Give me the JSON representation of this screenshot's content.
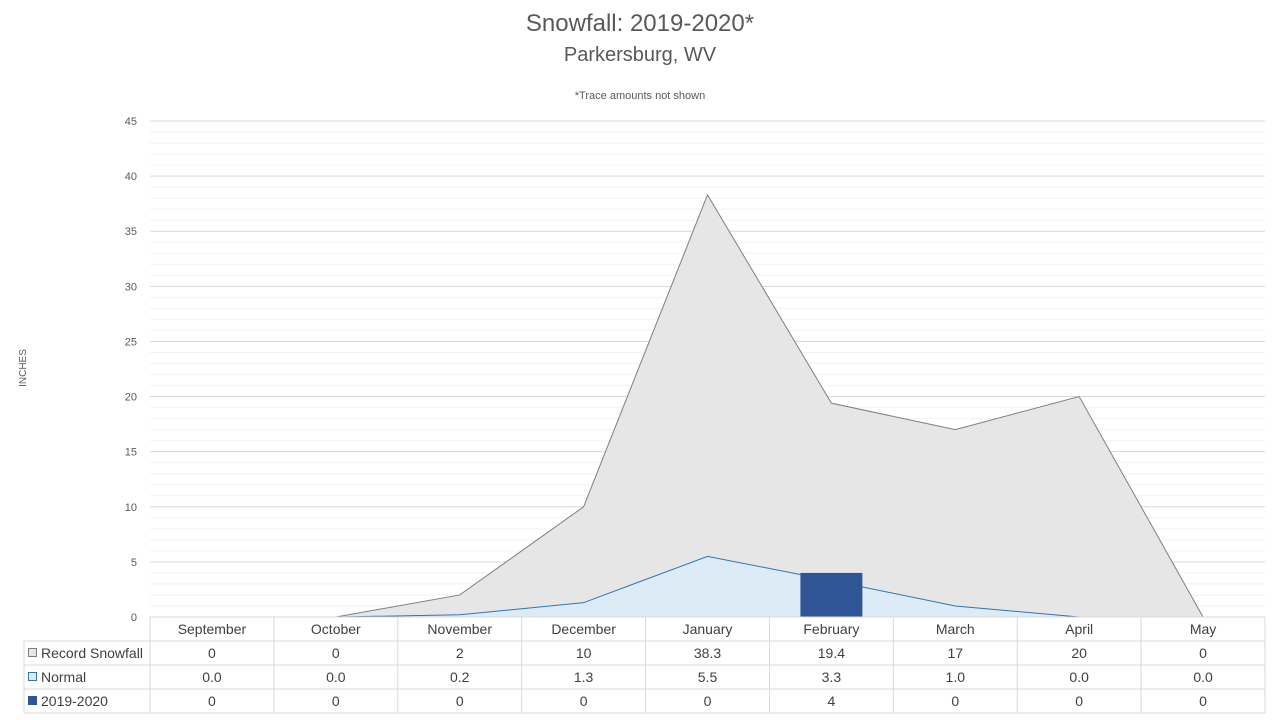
{
  "chart": {
    "title": "Snowfall: 2019-2020*",
    "subtitle": "Parkersburg, WV",
    "note": "*Trace amounts not shown",
    "ylabel": "INCHES"
  },
  "chart_data": {
    "type": "area",
    "title": "Snowfall: 2019-2020*",
    "subtitle": "Parkersburg, WV",
    "ylabel": "INCHES",
    "ylim": [
      0,
      45
    ],
    "yticks": [
      0,
      5,
      10,
      15,
      20,
      25,
      30,
      35,
      40,
      45
    ],
    "grid": true,
    "legend": "data-table",
    "categories": [
      "September",
      "October",
      "November",
      "December",
      "January",
      "February",
      "March",
      "April",
      "May"
    ],
    "series": [
      {
        "name": "Record Snowfall",
        "type": "area",
        "color": "#e7e6e6",
        "line_color": "#7f7f7f",
        "values": [
          0,
          0,
          2,
          10,
          38.3,
          19.4,
          17,
          20,
          0
        ],
        "labels": [
          "0",
          "0",
          "2",
          "10",
          "38.3",
          "19.4",
          "17",
          "20",
          "0"
        ]
      },
      {
        "name": "Normal",
        "type": "area",
        "color": "#ddebf7",
        "line_color": "#2e75b6",
        "values": [
          0.0,
          0.0,
          0.2,
          1.3,
          5.5,
          3.3,
          1.0,
          0.0,
          0.0
        ],
        "labels": [
          "0.0",
          "0.0",
          "0.2",
          "1.3",
          "5.5",
          "3.3",
          "1.0",
          "0.0",
          "0.0"
        ]
      },
      {
        "name": "2019-2020",
        "type": "bar",
        "color": "#2f5597",
        "values": [
          0,
          0,
          0,
          0,
          0,
          4,
          0,
          0,
          0
        ],
        "labels": [
          "0",
          "0",
          "0",
          "0",
          "0",
          "4",
          "0",
          "0",
          "0"
        ]
      }
    ]
  }
}
